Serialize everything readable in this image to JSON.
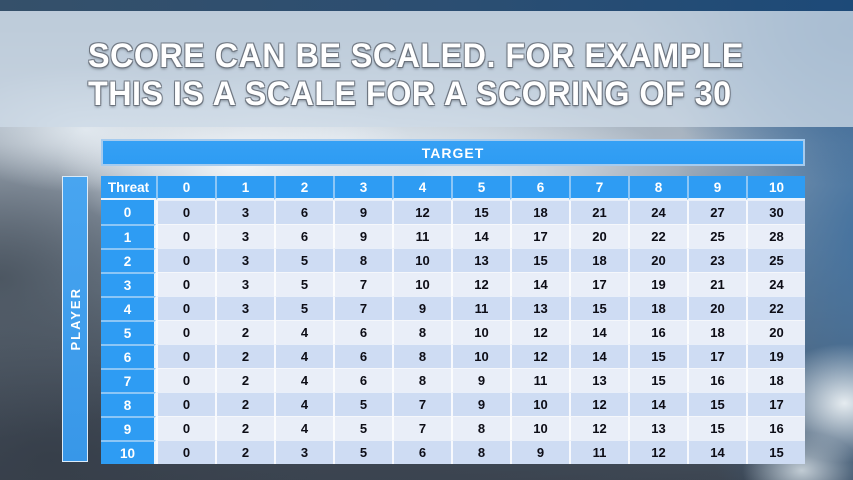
{
  "slide": {
    "title_line1": "SCORE CAN BE SCALED. FOR EXAMPLE",
    "title_line2": "THIS IS A SCALE FOR A SCORING OF 30"
  },
  "table": {
    "target_label": "TARGET",
    "player_label": "PLAYER",
    "corner_label": "Threat",
    "column_headers": [
      "0",
      "1",
      "2",
      "3",
      "4",
      "5",
      "6",
      "7",
      "8",
      "9",
      "10"
    ],
    "rows": [
      {
        "threat": "0",
        "values": [
          0,
          3,
          6,
          9,
          12,
          15,
          18,
          21,
          24,
          27,
          30
        ]
      },
      {
        "threat": "1",
        "values": [
          0,
          3,
          6,
          9,
          11,
          14,
          17,
          20,
          22,
          25,
          28
        ]
      },
      {
        "threat": "2",
        "values": [
          0,
          3,
          5,
          8,
          10,
          13,
          15,
          18,
          20,
          23,
          25
        ]
      },
      {
        "threat": "3",
        "values": [
          0,
          3,
          5,
          7,
          10,
          12,
          14,
          17,
          19,
          21,
          24
        ]
      },
      {
        "threat": "4",
        "values": [
          0,
          3,
          5,
          7,
          9,
          11,
          13,
          15,
          18,
          20,
          22
        ]
      },
      {
        "threat": "5",
        "values": [
          0,
          2,
          4,
          6,
          8,
          10,
          12,
          14,
          16,
          18,
          20
        ]
      },
      {
        "threat": "6",
        "values": [
          0,
          2,
          4,
          6,
          8,
          10,
          12,
          14,
          15,
          17,
          19
        ]
      },
      {
        "threat": "7",
        "values": [
          0,
          2,
          4,
          6,
          8,
          9,
          11,
          13,
          15,
          16,
          18
        ]
      },
      {
        "threat": "8",
        "values": [
          0,
          2,
          4,
          5,
          7,
          9,
          10,
          12,
          14,
          15,
          17
        ]
      },
      {
        "threat": "9",
        "values": [
          0,
          2,
          4,
          5,
          7,
          8,
          10,
          12,
          13,
          15,
          16
        ]
      },
      {
        "threat": "10",
        "values": [
          0,
          2,
          3,
          5,
          6,
          8,
          9,
          11,
          12,
          14,
          15
        ]
      }
    ]
  },
  "colors": {
    "accent_blue": "#2E9CF3",
    "header_separator": "#8CC6F6",
    "table_border_light": "#A6CBEE",
    "row_dark": "#CEDCF3",
    "row_light": "#E9EEF8",
    "cell_text": "#0D0D16",
    "header_text": "#FFFFFF",
    "top_bar": "#35506A",
    "title_text": "#FFFFFF"
  }
}
